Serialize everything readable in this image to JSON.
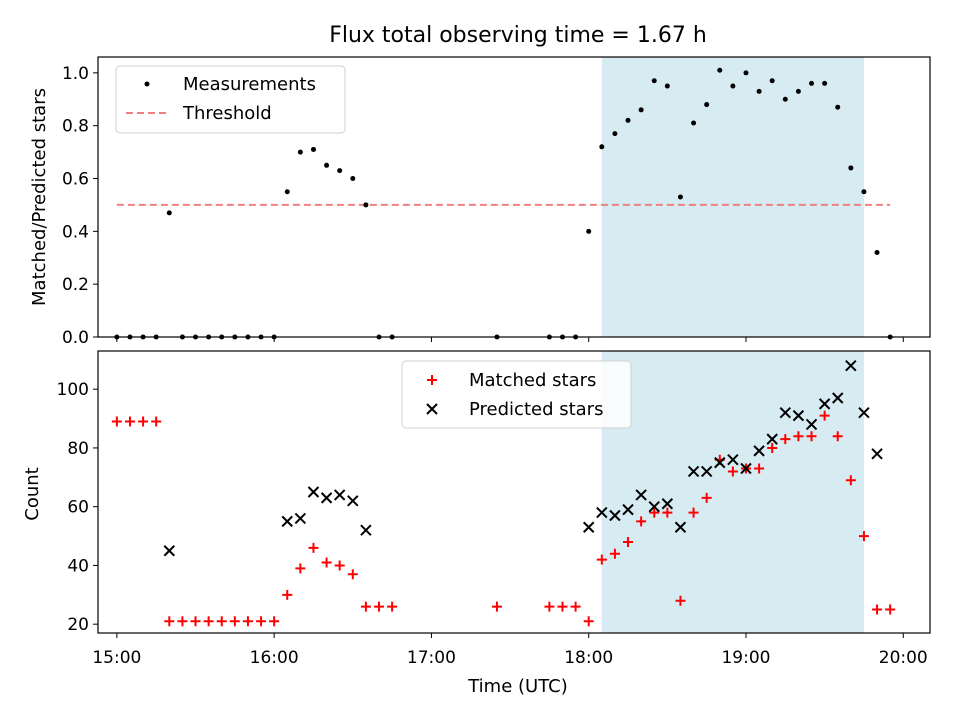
{
  "title": "Flux total observing time = 1.67 h",
  "colors": {
    "shade": "#add8e6",
    "measurements": "#000000",
    "threshold": "#f08080",
    "matched": "#ff0000",
    "predicted": "#000000"
  },
  "chart_data": [
    {
      "type": "scatter",
      "ylabel": "Matched/Predicted stars",
      "xlim": [
        14.88,
        20.17
      ],
      "ylim": [
        0,
        1.06
      ],
      "yticks": [
        0.0,
        0.2,
        0.4,
        0.6,
        0.8,
        1.0
      ],
      "ytick_labels": [
        "0.0",
        "0.2",
        "0.4",
        "0.6",
        "0.8",
        "1.0"
      ],
      "shaded_x_range": [
        "18:05",
        "19:45"
      ],
      "legend_position": "upper-left",
      "legend": [
        {
          "label": "Measurements",
          "marker": "dot"
        },
        {
          "label": "Threshold",
          "marker": "dashed-line"
        }
      ],
      "threshold": {
        "value": 0.5,
        "x_start": "15:00",
        "x_end": "19:55"
      },
      "measurements": {
        "x": [
          "15:00",
          "15:05",
          "15:10",
          "15:15",
          "15:20",
          "15:25",
          "15:30",
          "15:35",
          "15:40",
          "15:45",
          "15:50",
          "15:55",
          "16:00",
          "16:05",
          "16:10",
          "16:15",
          "16:20",
          "16:25",
          "16:30",
          "16:35",
          "16:40",
          "16:45",
          "17:25",
          "17:45",
          "17:50",
          "17:55",
          "18:00",
          "18:05",
          "18:10",
          "18:15",
          "18:20",
          "18:25",
          "18:30",
          "18:35",
          "18:40",
          "18:45",
          "18:50",
          "18:55",
          "19:00",
          "19:05",
          "19:10",
          "19:15",
          "19:20",
          "19:25",
          "19:30",
          "19:35",
          "19:40",
          "19:45",
          "19:50",
          "19:55"
        ],
        "y": [
          0,
          0,
          0,
          0,
          0.47,
          0,
          0,
          0,
          0,
          0,
          0,
          0,
          0,
          0.55,
          0.7,
          0.71,
          0.65,
          0.63,
          0.6,
          0.5,
          0,
          0,
          0,
          0,
          0,
          0,
          0.4,
          0.72,
          0.77,
          0.82,
          0.86,
          0.97,
          0.95,
          0.53,
          0.81,
          0.88,
          1.01,
          0.95,
          1.0,
          0.93,
          0.97,
          0.9,
          0.93,
          0.96,
          0.96,
          0.87,
          0.64,
          0.55,
          0.32,
          0
        ]
      }
    },
    {
      "type": "scatter",
      "xlabel": "Time (UTC)",
      "ylabel": "Count",
      "xlim": [
        14.88,
        20.17
      ],
      "ylim": [
        17,
        113
      ],
      "xticks": [
        15,
        16,
        17,
        18,
        19,
        20
      ],
      "xtick_labels": [
        "15:00",
        "16:00",
        "17:00",
        "18:00",
        "19:00",
        "20:00"
      ],
      "yticks": [
        20,
        40,
        60,
        80,
        100
      ],
      "ytick_labels": [
        "20",
        "40",
        "60",
        "80",
        "100"
      ],
      "shaded_x_range": [
        "18:05",
        "19:45"
      ],
      "legend_position": "upper-center",
      "series": [
        {
          "name": "Matched stars",
          "marker": "plus",
          "x": [
            "15:00",
            "15:05",
            "15:10",
            "15:15",
            "15:20",
            "15:25",
            "15:30",
            "15:35",
            "15:40",
            "15:45",
            "15:50",
            "15:55",
            "16:00",
            "16:05",
            "16:10",
            "16:15",
            "16:20",
            "16:25",
            "16:30",
            "16:35",
            "16:40",
            "16:45",
            "17:25",
            "17:45",
            "17:50",
            "17:55",
            "18:00",
            "18:05",
            "18:10",
            "18:15",
            "18:20",
            "18:25",
            "18:30",
            "18:35",
            "18:40",
            "18:45",
            "18:50",
            "18:55",
            "19:00",
            "19:05",
            "19:10",
            "19:15",
            "19:20",
            "19:25",
            "19:30",
            "19:35",
            "19:40",
            "19:45",
            "19:50",
            "19:55"
          ],
          "y": [
            89,
            89,
            89,
            89,
            21,
            21,
            21,
            21,
            21,
            21,
            21,
            21,
            21,
            30,
            39,
            46,
            41,
            40,
            37,
            26,
            26,
            26,
            26,
            26,
            26,
            26,
            21,
            42,
            44,
            48,
            55,
            58,
            58,
            28,
            58,
            63,
            76,
            72,
            73,
            73,
            80,
            83,
            84,
            84,
            91,
            84,
            69,
            50,
            25,
            25
          ]
        },
        {
          "name": "Predicted stars",
          "marker": "x",
          "x": [
            "15:20",
            "16:05",
            "16:10",
            "16:15",
            "16:20",
            "16:25",
            "16:30",
            "16:35",
            "18:00",
            "18:05",
            "18:10",
            "18:15",
            "18:20",
            "18:25",
            "18:30",
            "18:35",
            "18:40",
            "18:45",
            "18:50",
            "18:55",
            "19:00",
            "19:05",
            "19:10",
            "19:15",
            "19:20",
            "19:25",
            "19:30",
            "19:35",
            "19:40",
            "19:45",
            "19:50"
          ],
          "y": [
            45,
            55,
            56,
            65,
            63,
            64,
            62,
            52,
            53,
            58,
            57,
            59,
            64,
            60,
            61,
            53,
            72,
            72,
            75,
            76,
            73,
            79,
            83,
            92,
            91,
            88,
            95,
            97,
            108,
            92,
            78
          ]
        }
      ]
    }
  ]
}
